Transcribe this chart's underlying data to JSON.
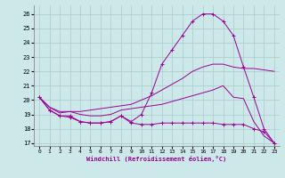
{
  "xlabel": "Windchill (Refroidissement éolien,°C)",
  "bg_color": "#cce8e8",
  "line_color": "#990099",
  "xlim": [
    -0.5,
    23.5
  ],
  "ylim": [
    16.8,
    26.6
  ],
  "yticks": [
    17,
    18,
    19,
    20,
    21,
    22,
    23,
    24,
    25,
    26
  ],
  "xticks": [
    0,
    1,
    2,
    3,
    4,
    5,
    6,
    7,
    8,
    9,
    10,
    11,
    12,
    13,
    14,
    15,
    16,
    17,
    18,
    19,
    20,
    21,
    22,
    23
  ],
  "series": [
    {
      "x": [
        0,
        1,
        2,
        3,
        4,
        5,
        6,
        7,
        8,
        9,
        10,
        11,
        12,
        13,
        14,
        15,
        16,
        17,
        18,
        19,
        20,
        21,
        22,
        23
      ],
      "y": [
        20.2,
        19.3,
        18.9,
        18.8,
        18.5,
        18.4,
        18.4,
        18.5,
        18.9,
        18.4,
        18.3,
        18.3,
        18.4,
        18.4,
        18.4,
        18.4,
        18.4,
        18.4,
        18.3,
        18.3,
        18.3,
        18.0,
        17.8,
        17.0
      ],
      "marker": "+"
    },
    {
      "x": [
        0,
        1,
        2,
        3,
        4,
        5,
        6,
        7,
        8,
        9,
        10,
        11,
        12,
        13,
        14,
        15,
        16,
        17,
        18,
        19,
        20,
        21,
        22,
        23
      ],
      "y": [
        20.2,
        19.5,
        19.1,
        19.2,
        19.2,
        19.3,
        19.4,
        19.5,
        19.6,
        19.7,
        20.0,
        20.3,
        20.7,
        21.1,
        21.5,
        22.0,
        22.3,
        22.5,
        22.5,
        22.3,
        22.2,
        22.2,
        22.1,
        22.0
      ],
      "marker": null
    },
    {
      "x": [
        0,
        1,
        2,
        3,
        4,
        5,
        6,
        7,
        8,
        9,
        10,
        11,
        12,
        13,
        14,
        15,
        16,
        17,
        18,
        19,
        20,
        21,
        22,
        23
      ],
      "y": [
        20.2,
        19.3,
        18.9,
        18.9,
        18.5,
        18.4,
        18.4,
        18.5,
        18.9,
        18.5,
        19.0,
        20.5,
        22.5,
        23.5,
        24.5,
        25.5,
        26.0,
        26.0,
        25.5,
        24.5,
        22.3,
        20.2,
        18.0,
        17.0
      ],
      "marker": "+"
    },
    {
      "x": [
        0,
        1,
        2,
        3,
        4,
        5,
        6,
        7,
        8,
        9,
        10,
        11,
        12,
        13,
        14,
        15,
        16,
        17,
        18,
        19,
        20,
        21,
        22,
        23
      ],
      "y": [
        20.2,
        19.5,
        19.2,
        19.2,
        19.0,
        18.9,
        18.9,
        19.0,
        19.3,
        19.4,
        19.5,
        19.6,
        19.7,
        19.9,
        20.1,
        20.3,
        20.5,
        20.7,
        21.0,
        20.2,
        20.1,
        18.5,
        17.5,
        17.0
      ],
      "marker": null
    }
  ]
}
